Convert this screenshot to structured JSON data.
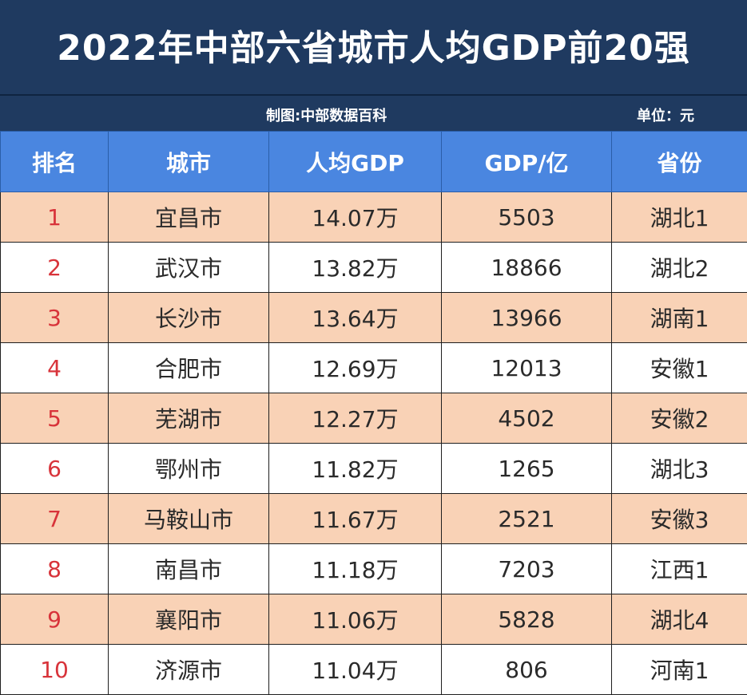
{
  "title": "2022年中部六省城市人均GDP前20强",
  "credit": "制图:中部数据百科",
  "unit": "单位：元",
  "columns": [
    "排名",
    "城市",
    "人均GDP",
    "GDP/亿",
    "省份"
  ],
  "rows": [
    {
      "rank": "1",
      "city": "宜昌市",
      "gdp_per_capita": "14.07万",
      "gdp": "5503",
      "province": "湖北1"
    },
    {
      "rank": "2",
      "city": "武汉市",
      "gdp_per_capita": "13.82万",
      "gdp": "18866",
      "province": "湖北2"
    },
    {
      "rank": "3",
      "city": "长沙市",
      "gdp_per_capita": "13.64万",
      "gdp": "13966",
      "province": "湖南1"
    },
    {
      "rank": "4",
      "city": "合肥市",
      "gdp_per_capita": "12.69万",
      "gdp": "12013",
      "province": "安徽1"
    },
    {
      "rank": "5",
      "city": "芜湖市",
      "gdp_per_capita": "12.27万",
      "gdp": "4502",
      "province": "安徽2"
    },
    {
      "rank": "6",
      "city": "鄂州市",
      "gdp_per_capita": "11.82万",
      "gdp": "1265",
      "province": "湖北3"
    },
    {
      "rank": "7",
      "city": "马鞍山市",
      "gdp_per_capita": "11.67万",
      "gdp": "2521",
      "province": "安徽3"
    },
    {
      "rank": "8",
      "city": "南昌市",
      "gdp_per_capita": "11.18万",
      "gdp": "7203",
      "province": "江西1"
    },
    {
      "rank": "9",
      "city": "襄阳市",
      "gdp_per_capita": "11.06万",
      "gdp": "5828",
      "province": "湖北4"
    },
    {
      "rank": "10",
      "city": "济源市",
      "gdp_per_capita": "11.04万",
      "gdp": "806",
      "province": "河南1"
    }
  ],
  "colors": {
    "title_band": "#1f3a60",
    "header_bg": "#4a86e0",
    "row_highlight": "#f9d2b6",
    "rank_text": "#d8333a"
  }
}
